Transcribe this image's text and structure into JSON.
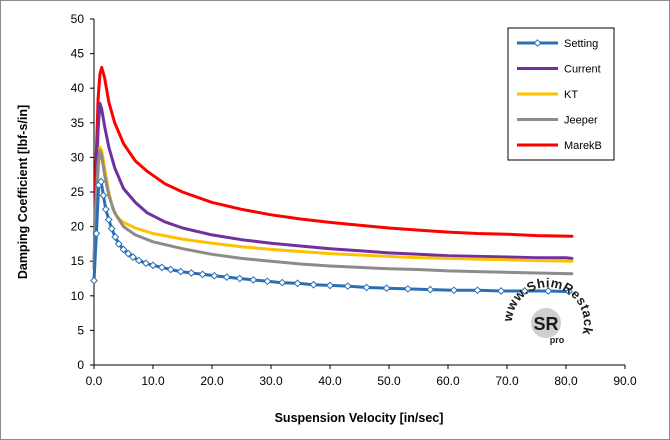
{
  "chart_data": {
    "type": "line",
    "title": "",
    "xlabel": "Suspension Velocity [in/sec]",
    "ylabel": "Damping Coefficient  [lbf-s/in]",
    "xlim": [
      0,
      90
    ],
    "ylim": [
      0,
      50
    ],
    "x_ticks": [
      "0.0",
      "10.0",
      "20.0",
      "30.0",
      "40.0",
      "50.0",
      "60.0",
      "70.0",
      "80.0",
      "90.0"
    ],
    "y_ticks": [
      "0",
      "5",
      "10",
      "15",
      "20",
      "25",
      "30",
      "35",
      "40",
      "45",
      "50"
    ],
    "grid": false,
    "legend_position": "top-right",
    "series": [
      {
        "name": "Setting",
        "color": "#2a6fb5",
        "markers": true,
        "points": [
          [
            0,
            12.2
          ],
          [
            0.4,
            19.0
          ],
          [
            0.8,
            26.0
          ],
          [
            1.2,
            26.5
          ],
          [
            1.6,
            24.5
          ],
          [
            2.0,
            22.5
          ],
          [
            2.5,
            21.0
          ],
          [
            3.0,
            19.7
          ],
          [
            3.6,
            18.5
          ],
          [
            4.2,
            17.5
          ],
          [
            5.0,
            16.7
          ],
          [
            5.8,
            16.1
          ],
          [
            6.6,
            15.6
          ],
          [
            7.6,
            15.1
          ],
          [
            8.8,
            14.7
          ],
          [
            10.0,
            14.4
          ],
          [
            11.5,
            14.1
          ],
          [
            13.0,
            13.8
          ],
          [
            14.7,
            13.5
          ],
          [
            16.5,
            13.3
          ],
          [
            18.4,
            13.1
          ],
          [
            20.4,
            12.9
          ],
          [
            22.5,
            12.7
          ],
          [
            24.7,
            12.5
          ],
          [
            27.0,
            12.3
          ],
          [
            29.4,
            12.1
          ],
          [
            31.9,
            11.9
          ],
          [
            34.5,
            11.8
          ],
          [
            37.2,
            11.6
          ],
          [
            40.0,
            11.5
          ],
          [
            43.0,
            11.4
          ],
          [
            46.2,
            11.2
          ],
          [
            49.6,
            11.1
          ],
          [
            53.2,
            11.0
          ],
          [
            57.0,
            10.9
          ],
          [
            61.0,
            10.8
          ],
          [
            65.0,
            10.8
          ],
          [
            69.0,
            10.7
          ],
          [
            73.0,
            10.7
          ],
          [
            77.0,
            10.7
          ],
          [
            80.5,
            10.6
          ]
        ]
      },
      {
        "name": "Current",
        "color": "#7030a0",
        "markers": false,
        "points": [
          [
            0,
            14.0
          ],
          [
            0.3,
            24.0
          ],
          [
            0.7,
            34.0
          ],
          [
            1.0,
            37.8
          ],
          [
            1.3,
            37.0
          ],
          [
            1.8,
            34.5
          ],
          [
            2.5,
            31.5
          ],
          [
            3.5,
            28.5
          ],
          [
            5.0,
            25.5
          ],
          [
            7.0,
            23.5
          ],
          [
            9.0,
            22.0
          ],
          [
            12.0,
            20.7
          ],
          [
            15.0,
            19.8
          ],
          [
            20.0,
            18.8
          ],
          [
            25.0,
            18.1
          ],
          [
            30.0,
            17.6
          ],
          [
            35.0,
            17.2
          ],
          [
            40.0,
            16.8
          ],
          [
            45.0,
            16.5
          ],
          [
            50.0,
            16.2
          ],
          [
            55.0,
            16.0
          ],
          [
            60.0,
            15.8
          ],
          [
            65.0,
            15.7
          ],
          [
            70.0,
            15.6
          ],
          [
            75.0,
            15.5
          ],
          [
            80.0,
            15.5
          ],
          [
            81.0,
            15.4
          ]
        ]
      },
      {
        "name": "KT",
        "color": "#ffc000",
        "markers": false,
        "points": [
          [
            0,
            14.0
          ],
          [
            0.3,
            21.0
          ],
          [
            0.7,
            27.5
          ],
          [
            1.0,
            31.5
          ],
          [
            1.3,
            31.0
          ],
          [
            1.8,
            28.5
          ],
          [
            2.5,
            25.0
          ],
          [
            3.2,
            22.5
          ],
          [
            4.0,
            21.3
          ],
          [
            5.0,
            20.6
          ],
          [
            7.0,
            19.8
          ],
          [
            10.0,
            19.0
          ],
          [
            15.0,
            18.2
          ],
          [
            20.0,
            17.6
          ],
          [
            25.0,
            17.1
          ],
          [
            30.0,
            16.7
          ],
          [
            35.0,
            16.4
          ],
          [
            40.0,
            16.1
          ],
          [
            45.0,
            15.9
          ],
          [
            50.0,
            15.7
          ],
          [
            55.0,
            15.5
          ],
          [
            60.0,
            15.4
          ],
          [
            65.0,
            15.3
          ],
          [
            70.0,
            15.2
          ],
          [
            75.0,
            15.1
          ],
          [
            81.0,
            15.0
          ]
        ]
      },
      {
        "name": "Jeeper",
        "color": "#8c8c8c",
        "markers": false,
        "points": [
          [
            0,
            14.0
          ],
          [
            0.3,
            23.0
          ],
          [
            0.7,
            29.0
          ],
          [
            1.0,
            31.0
          ],
          [
            1.3,
            30.2
          ],
          [
            1.8,
            27.5
          ],
          [
            2.5,
            24.5
          ],
          [
            3.5,
            22.0
          ],
          [
            5.0,
            20.0
          ],
          [
            7.0,
            18.8
          ],
          [
            10.0,
            17.8
          ],
          [
            15.0,
            16.8
          ],
          [
            20.0,
            16.0
          ],
          [
            25.0,
            15.4
          ],
          [
            30.0,
            15.0
          ],
          [
            35.0,
            14.6
          ],
          [
            40.0,
            14.3
          ],
          [
            45.0,
            14.1
          ],
          [
            50.0,
            13.9
          ],
          [
            55.0,
            13.8
          ],
          [
            60.0,
            13.6
          ],
          [
            65.0,
            13.5
          ],
          [
            70.0,
            13.4
          ],
          [
            75.0,
            13.3
          ],
          [
            81.0,
            13.2
          ]
        ]
      },
      {
        "name": "MarekB",
        "color": "#ff0000",
        "markers": false,
        "points": [
          [
            0,
            14.0
          ],
          [
            0.3,
            28.0
          ],
          [
            0.7,
            38.5
          ],
          [
            1.0,
            42.0
          ],
          [
            1.3,
            43.0
          ],
          [
            1.8,
            41.5
          ],
          [
            2.5,
            38.0
          ],
          [
            3.5,
            35.0
          ],
          [
            5.0,
            32.0
          ],
          [
            7.0,
            29.5
          ],
          [
            9.0,
            28.0
          ],
          [
            12.0,
            26.2
          ],
          [
            15.0,
            25.0
          ],
          [
            20.0,
            23.5
          ],
          [
            25.0,
            22.5
          ],
          [
            30.0,
            21.7
          ],
          [
            35.0,
            21.1
          ],
          [
            40.0,
            20.6
          ],
          [
            45.0,
            20.2
          ],
          [
            50.0,
            19.8
          ],
          [
            55.0,
            19.5
          ],
          [
            60.0,
            19.2
          ],
          [
            65.0,
            19.0
          ],
          [
            70.0,
            18.9
          ],
          [
            75.0,
            18.7
          ],
          [
            81.0,
            18.6
          ]
        ]
      }
    ]
  },
  "watermark": {
    "logo_letters": "SR",
    "logo_sub": "pro",
    "text": "www.ShimRestackor.com"
  }
}
